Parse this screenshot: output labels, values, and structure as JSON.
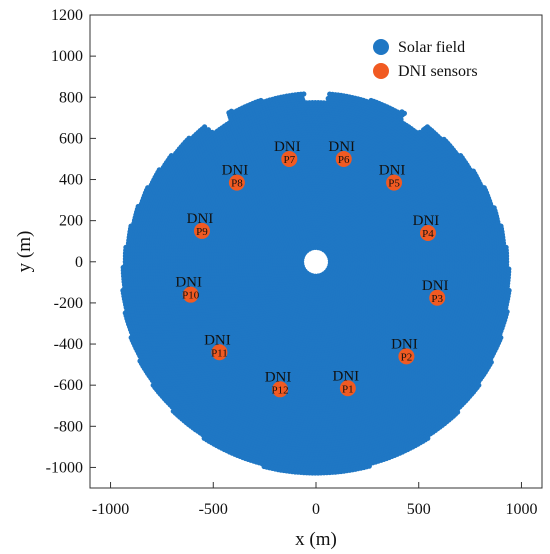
{
  "chart_data": {
    "type": "scatter",
    "title": "",
    "xlabel": "x (m)",
    "ylabel": "y (m)",
    "xlim": [
      -1100,
      1100
    ],
    "ylim": [
      -1100,
      1200
    ],
    "xticks": [
      -1000,
      -500,
      0,
      500,
      1000
    ],
    "xtick_labels": [
      "-1000",
      "-500",
      "0",
      "500",
      "1000"
    ],
    "yticks": [
      -1000,
      -800,
      -600,
      -400,
      -200,
      0,
      200,
      400,
      600,
      800,
      1000,
      1200
    ],
    "ytick_labels": [
      "-1000",
      "-800",
      "-600",
      "-400",
      "-200",
      "0",
      "200",
      "400",
      "600",
      "800",
      "1000",
      "1200"
    ],
    "grid": false,
    "legend_position": "top-right",
    "series": [
      {
        "name": "Solar field",
        "color": "#1f77c4",
        "field": {
          "inner_radius_m": 70,
          "outer_radius_min_m": 820,
          "outer_radius_max_m": 1030,
          "outer_radius_max_direction": "south",
          "notches_deg": [
            55,
            90,
            125
          ]
        }
      },
      {
        "name": "DNI sensors",
        "color": "#f15a22",
        "point_label": "DNI",
        "points": [
          {
            "id": "P1",
            "x": 155,
            "y": -615
          },
          {
            "id": "P2",
            "x": 440,
            "y": -460
          },
          {
            "id": "P3",
            "x": 590,
            "y": -175
          },
          {
            "id": "P4",
            "x": 545,
            "y": 140
          },
          {
            "id": "P5",
            "x": 380,
            "y": 385
          },
          {
            "id": "P6",
            "x": 135,
            "y": 500
          },
          {
            "id": "P7",
            "x": -130,
            "y": 500
          },
          {
            "id": "P8",
            "x": -385,
            "y": 385
          },
          {
            "id": "P9",
            "x": -555,
            "y": 150
          },
          {
            "id": "P10",
            "x": -610,
            "y": -160
          },
          {
            "id": "P11",
            "x": -470,
            "y": -440
          },
          {
            "id": "P12",
            "x": -175,
            "y": -620
          }
        ]
      }
    ]
  }
}
